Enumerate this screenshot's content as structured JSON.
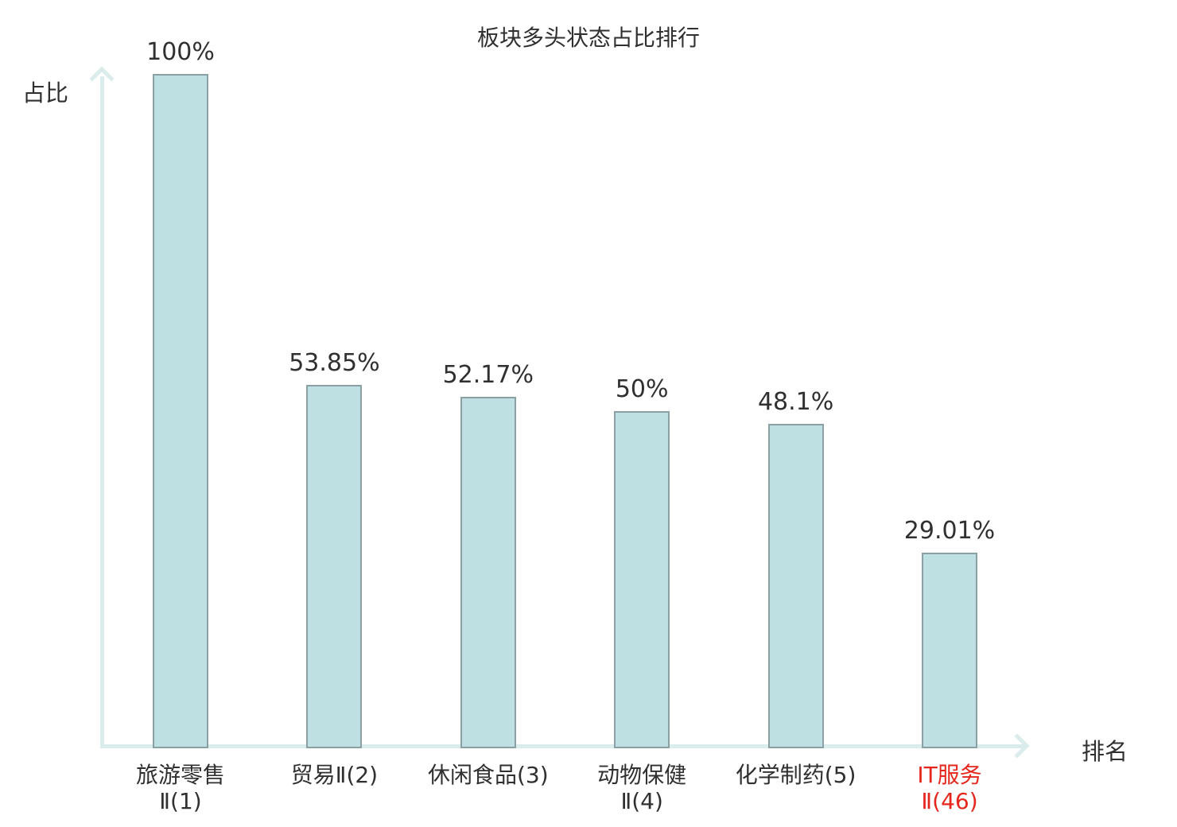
{
  "title": "板块多头状态占比排行",
  "axes": {
    "y_label": "占比",
    "x_label": "排名"
  },
  "colors": {
    "bar_fill": "#bfe0e2",
    "bar_border": "#8aa0a2",
    "axis": "#daedec",
    "text": "#303030",
    "highlight": "#e5261c"
  },
  "chart_data": {
    "type": "bar",
    "title": "板块多头状态占比排行",
    "xlabel": "排名",
    "ylabel": "占比",
    "ylim": [
      0,
      100
    ],
    "grid": false,
    "legend": false,
    "categories": [
      "旅游零售Ⅱ(1)",
      "贸易Ⅱ(2)",
      "休闲食品(3)",
      "动物保健Ⅱ(4)",
      "化学制药(5)",
      "IT服务Ⅱ(46)"
    ],
    "category_lines": [
      [
        "旅游零售",
        "Ⅱ(1)"
      ],
      [
        "贸易Ⅱ(2)"
      ],
      [
        "休闲食品(3)"
      ],
      [
        "动物保健",
        "Ⅱ(4)"
      ],
      [
        "化学制药(5)"
      ],
      [
        "IT服务",
        "Ⅱ(46)"
      ]
    ],
    "values": [
      100,
      53.85,
      52.17,
      50,
      48.1,
      29.01
    ],
    "value_labels": [
      "100%",
      "53.85%",
      "52.17%",
      "50%",
      "48.1%",
      "29.01%"
    ],
    "highlighted_index": 5,
    "highlight_color": "#e5261c",
    "bar_color": "#bfe0e2"
  }
}
